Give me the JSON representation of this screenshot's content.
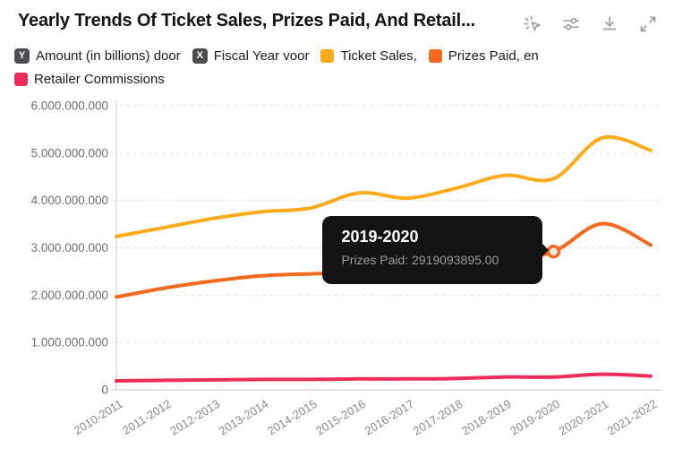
{
  "header": {
    "title": "Yearly Trends Of Ticket Sales, Prizes Paid, And Retail...",
    "icons": [
      "cursor-spark-icon",
      "sliders-icon",
      "download-icon",
      "expand-icon"
    ]
  },
  "legend": {
    "items": [
      {
        "kind": "badge",
        "symbol": "Y",
        "label": "Amount (in billions) door"
      },
      {
        "kind": "badge",
        "symbol": "X",
        "label": "Fiscal Year voor"
      },
      {
        "kind": "swatch",
        "color": "#fbab1b",
        "label": "Ticket Sales,"
      },
      {
        "kind": "swatch",
        "color": "#f4691e",
        "label": "Prizes Paid, en"
      },
      {
        "kind": "swatch",
        "color": "#ee2d5a",
        "label": "Retailer Commissions"
      }
    ]
  },
  "tooltip": {
    "title": "2019-2020",
    "text": "Prizes Paid: 2919093895.00"
  },
  "chart_data": {
    "type": "line",
    "title": "Yearly Trends Of Ticket Sales, Prizes Paid, And Retail...",
    "xlabel": "Fiscal Year",
    "ylabel": "Amount (in billions)",
    "categories": [
      "2010-2011",
      "2011-2012",
      "2012-2013",
      "2013-2014",
      "2014-2015",
      "2015-2016",
      "2016-2017",
      "2017-2018",
      "2018-2019",
      "2019-2020",
      "2020-2021",
      "2021-2022"
    ],
    "series": [
      {
        "name": "Ticket Sales",
        "color": "#fbab1b",
        "values": [
          3240000000,
          3430000000,
          3620000000,
          3760000000,
          3840000000,
          4160000000,
          4050000000,
          4260000000,
          4530000000,
          4460000000,
          5320000000,
          5060000000
        ]
      },
      {
        "name": "Prizes Paid",
        "color": "#f4691e",
        "values": [
          1960000000,
          2150000000,
          2300000000,
          2410000000,
          2450000000,
          2480000000,
          2540000000,
          2630000000,
          2750000000,
          2919093895,
          3510000000,
          3060000000
        ]
      },
      {
        "name": "Retailer Commissions",
        "color": "#ee2d5a",
        "values": [
          190000000,
          200000000,
          210000000,
          220000000,
          220000000,
          230000000,
          230000000,
          240000000,
          270000000,
          270000000,
          330000000,
          290000000
        ]
      }
    ],
    "ylim": [
      0,
      6000000000
    ],
    "y_tick_labels": [
      "0",
      "1.000.000.000",
      "2.000.000.000",
      "3.000.000.000",
      "4.000.000.000",
      "5.000.000.000",
      "6.000.000.000"
    ],
    "grid": "horizontal dashed",
    "legend_position": "top",
    "highlight": {
      "series_index": 1,
      "point_index": 9,
      "value": 2919093895.0
    }
  },
  "colors": {
    "grid": "#e3e3e3",
    "axis": "#d9d9d9",
    "y_tick_text": "#6f6f6f",
    "x_tick_text": "#8a8a8a",
    "tooltip_bg": "#131313",
    "marker_fill": "#ececec"
  }
}
